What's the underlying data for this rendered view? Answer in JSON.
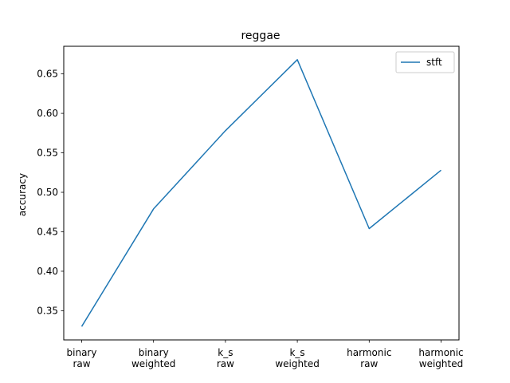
{
  "chart_data": {
    "type": "line",
    "title": "reggae",
    "xlabel": "",
    "ylabel": "accuracy",
    "categories": [
      [
        "binary",
        "raw"
      ],
      [
        "binary",
        "weighted"
      ],
      [
        "k_s",
        "raw"
      ],
      [
        "k_s",
        "weighted"
      ],
      [
        "harmonic",
        "raw"
      ],
      [
        "harmonic",
        "weighted"
      ]
    ],
    "series": [
      {
        "name": "stft",
        "color": "#1f77b4",
        "values": [
          0.33,
          0.479,
          0.578,
          0.668,
          0.454,
          0.528
        ]
      }
    ],
    "ylim": [
      0.313,
      0.685
    ],
    "yticks": [
      0.35,
      0.4,
      0.45,
      0.5,
      0.55,
      0.6,
      0.65
    ],
    "ytick_labels": [
      "0.35",
      "0.40",
      "0.45",
      "0.50",
      "0.55",
      "0.60",
      "0.65"
    ],
    "grid": false,
    "legend": "top-right"
  }
}
